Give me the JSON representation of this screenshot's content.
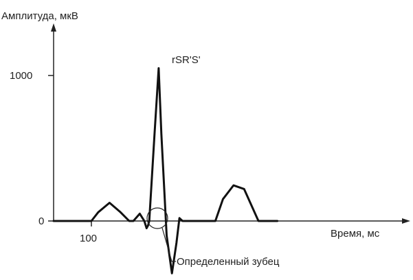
{
  "chart_data": {
    "type": "line",
    "title": "",
    "ylabel": "Амплитуда, мкВ",
    "xlabel": "Время, мс",
    "y_tick_labels": [
      "0",
      "1000"
    ],
    "x_tick_labels": [
      "100"
    ],
    "peak_label": "rSR'S'",
    "callout_label": "Определенный зубец",
    "grid": false,
    "legend": "none",
    "series": [
      {
        "values_note": "approximate amplitude (мкВ) vs time (мс)",
        "x": [
          0,
          100,
          118,
          148,
          177,
          200,
          211,
          228,
          240,
          246,
          250,
          253,
          267,
          278,
          285,
          299,
          313,
          325,
          333,
          341,
          355,
          368,
          382,
          428,
          448,
          476,
          504,
          542,
          568,
          592
        ],
        "y": [
          0,
          0,
          60,
          125,
          60,
          0,
          0,
          50,
          0,
          -50,
          -30,
          0,
          600,
          1050,
          600,
          -100,
          -360,
          -150,
          20,
          0,
          0,
          0,
          0,
          0,
          150,
          245,
          220,
          0,
          0,
          0
        ]
      }
    ],
    "xlim": [
      0,
      600
    ],
    "ylim": [
      -420,
      1350
    ]
  }
}
